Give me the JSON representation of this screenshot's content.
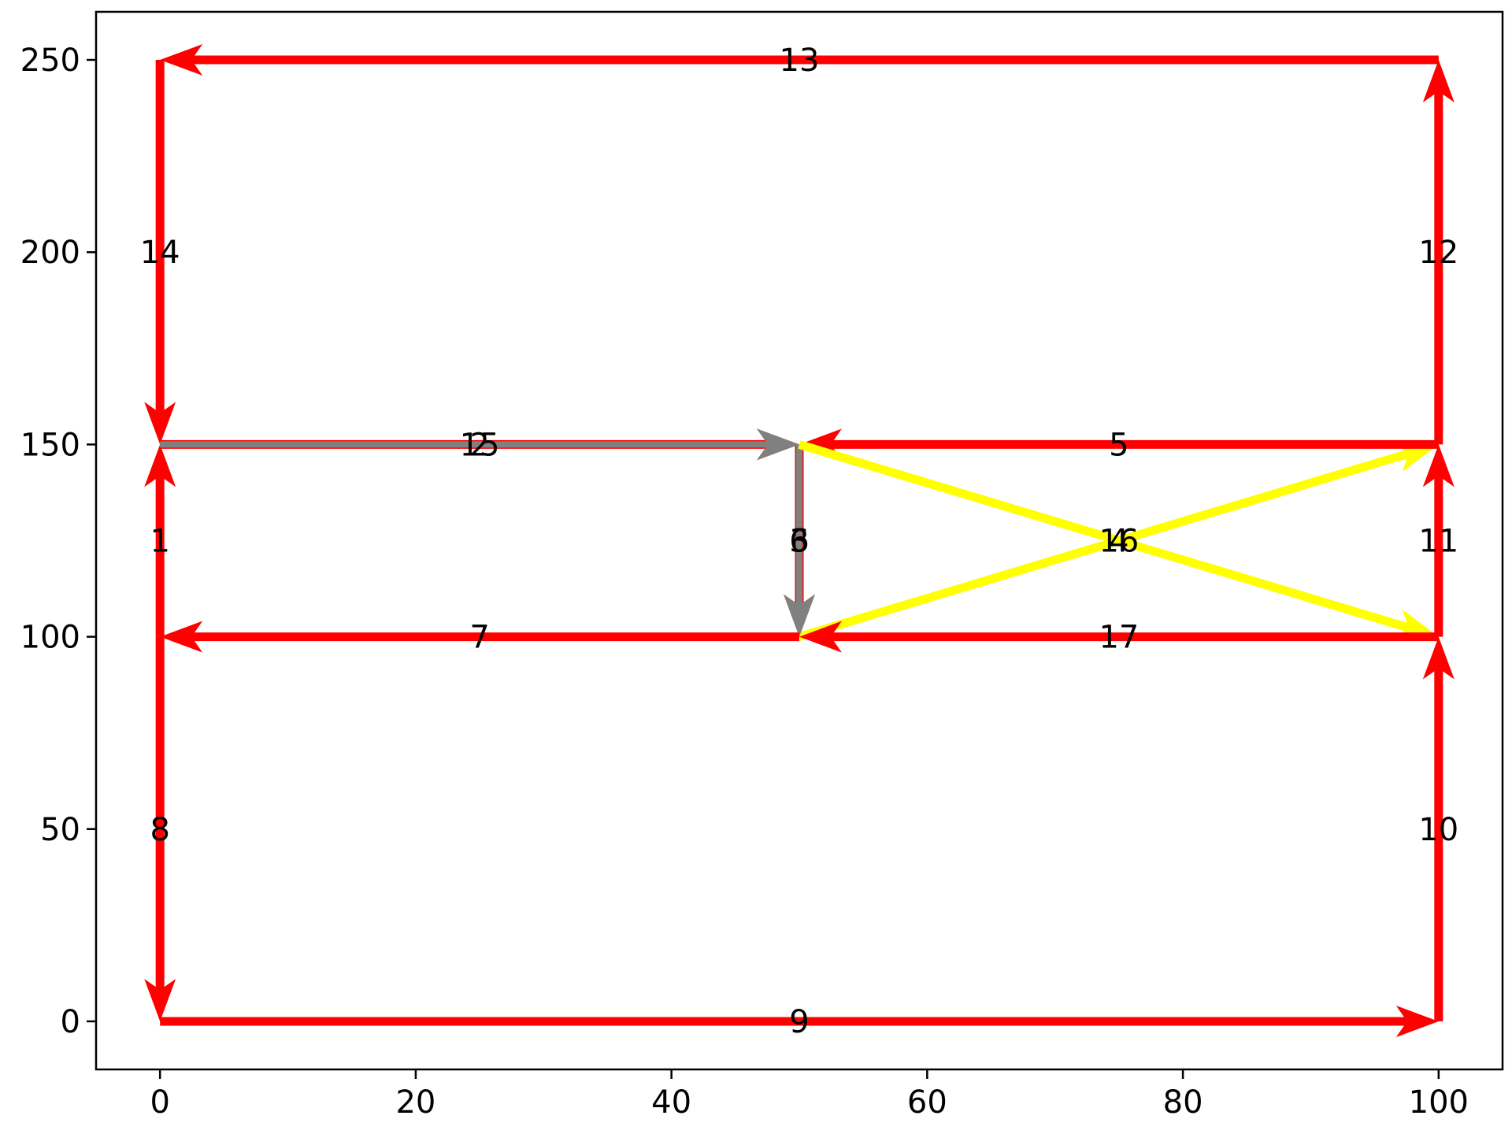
{
  "chart_data": {
    "type": "network",
    "xlim": [
      -5,
      105
    ],
    "ylim": [
      -12.5,
      262.5
    ],
    "x_ticks": [
      {
        "value": 0,
        "label": "0"
      },
      {
        "value": 20,
        "label": "20"
      },
      {
        "value": 40,
        "label": "40"
      },
      {
        "value": 60,
        "label": "60"
      },
      {
        "value": 80,
        "label": "80"
      },
      {
        "value": 100,
        "label": "100"
      }
    ],
    "y_ticks": [
      {
        "value": 0,
        "label": "0"
      },
      {
        "value": 50,
        "label": "50"
      },
      {
        "value": 100,
        "label": "100"
      },
      {
        "value": 150,
        "label": "150"
      },
      {
        "value": 200,
        "label": "200"
      },
      {
        "value": 250,
        "label": "250"
      }
    ],
    "colors": {
      "red": "#ff0000",
      "gray": "#808080",
      "yellow": "#ffff00",
      "axis": "#000000"
    },
    "edges": [
      {
        "label": "1",
        "from": [
          0,
          100
        ],
        "to": [
          0,
          150
        ],
        "color": "red"
      },
      {
        "label": "2",
        "from": [
          0,
          150
        ],
        "to": [
          50,
          150
        ],
        "color": "red"
      },
      {
        "label": "3",
        "from": [
          50,
          150
        ],
        "to": [
          50,
          100
        ],
        "color": "red"
      },
      {
        "label": "4",
        "from": [
          50,
          100
        ],
        "to": [
          100,
          150
        ],
        "color": "yellow"
      },
      {
        "label": "5",
        "from": [
          100,
          150
        ],
        "to": [
          50,
          150
        ],
        "color": "red"
      },
      {
        "label": "6",
        "from": [
          50,
          150
        ],
        "to": [
          50,
          100
        ],
        "color": "gray"
      },
      {
        "label": "7",
        "from": [
          50,
          100
        ],
        "to": [
          0,
          100
        ],
        "color": "red"
      },
      {
        "label": "8",
        "from": [
          0,
          100
        ],
        "to": [
          0,
          0
        ],
        "color": "red"
      },
      {
        "label": "9",
        "from": [
          0,
          0
        ],
        "to": [
          100,
          0
        ],
        "color": "red"
      },
      {
        "label": "10",
        "from": [
          100,
          0
        ],
        "to": [
          100,
          100
        ],
        "color": "red"
      },
      {
        "label": "11",
        "from": [
          100,
          100
        ],
        "to": [
          100,
          150
        ],
        "color": "red"
      },
      {
        "label": "12",
        "from": [
          100,
          150
        ],
        "to": [
          100,
          250
        ],
        "color": "red"
      },
      {
        "label": "13",
        "from": [
          100,
          250
        ],
        "to": [
          0,
          250
        ],
        "color": "red"
      },
      {
        "label": "14",
        "from": [
          0,
          250
        ],
        "to": [
          0,
          150
        ],
        "color": "red"
      },
      {
        "label": "15",
        "from": [
          0,
          150
        ],
        "to": [
          50,
          150
        ],
        "color": "gray"
      },
      {
        "label": "16",
        "from": [
          50,
          150
        ],
        "to": [
          100,
          100
        ],
        "color": "yellow"
      },
      {
        "label": "17",
        "from": [
          100,
          100
        ],
        "to": [
          50,
          100
        ],
        "color": "red"
      }
    ]
  }
}
